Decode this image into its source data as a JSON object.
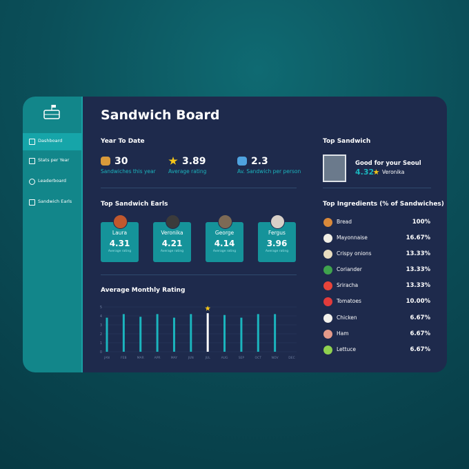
{
  "sidebar": {
    "nav": [
      "Dashboard",
      "Stats per Year",
      "Leaderboard",
      "Sandwich Earls"
    ],
    "active": 0
  },
  "header": {
    "title": "Sandwich Board"
  },
  "year_to_date": {
    "title": "Year To Date",
    "stats": [
      {
        "value": 30,
        "label": "Sandwiches this year"
      },
      {
        "value": 3.89,
        "label": "Average rating"
      },
      {
        "value": 2.3,
        "label": "Av. Sandwich per person"
      }
    ]
  },
  "earls": {
    "title": "Top Sandwich Earls",
    "cards": [
      {
        "name": "Laura",
        "score": 4.31,
        "label": "Average rating"
      },
      {
        "name": "Veronika",
        "score": 4.21,
        "label": "Average rating"
      },
      {
        "name": "George",
        "score": 4.14,
        "label": "Average rating"
      },
      {
        "name": "Fergus",
        "score": 3.96,
        "label": "Average rating"
      }
    ]
  },
  "chart_data": {
    "type": "bar",
    "title": "Average Monthly Rating",
    "categories": [
      "JAN",
      "FEB",
      "MAR",
      "APR",
      "MAY",
      "JUN",
      "JUL",
      "AUG",
      "SEP",
      "OCT",
      "NOV",
      "DEC"
    ],
    "values": [
      3.8,
      4.2,
      3.9,
      4.2,
      3.8,
      4.2,
      4.3,
      4.1,
      3.8,
      4.2,
      4.2,
      null
    ],
    "color": "#1bb5be",
    "highlight_color": "#ffffff",
    "highlight_index": 6,
    "ylim": [
      0,
      5
    ],
    "yticks": [
      0,
      1,
      2,
      3,
      4,
      5
    ],
    "grid": true
  },
  "top_sandwich": {
    "title": "Top Sandwich",
    "name": "Good for your Seoul",
    "rating": 4.32,
    "person": "Veronika"
  },
  "ingredients": {
    "title": "Top Ingredients (% of Sandwiches)",
    "rows": [
      {
        "name": "Bread",
        "value": "100%"
      },
      {
        "name": "Mayonnaise",
        "value": "16.67%"
      },
      {
        "name": "Crispy onions",
        "value": "13.33%"
      },
      {
        "name": "Coriander",
        "value": "13.33%"
      },
      {
        "name": "Sriracha",
        "value": "13.33%"
      },
      {
        "name": "Tomatoes",
        "value": "10.00%"
      },
      {
        "name": "Chicken",
        "value": "6.67%"
      },
      {
        "name": "Ham",
        "value": "6.67%"
      },
      {
        "name": "Lettuce",
        "value": "6.67%"
      }
    ]
  }
}
